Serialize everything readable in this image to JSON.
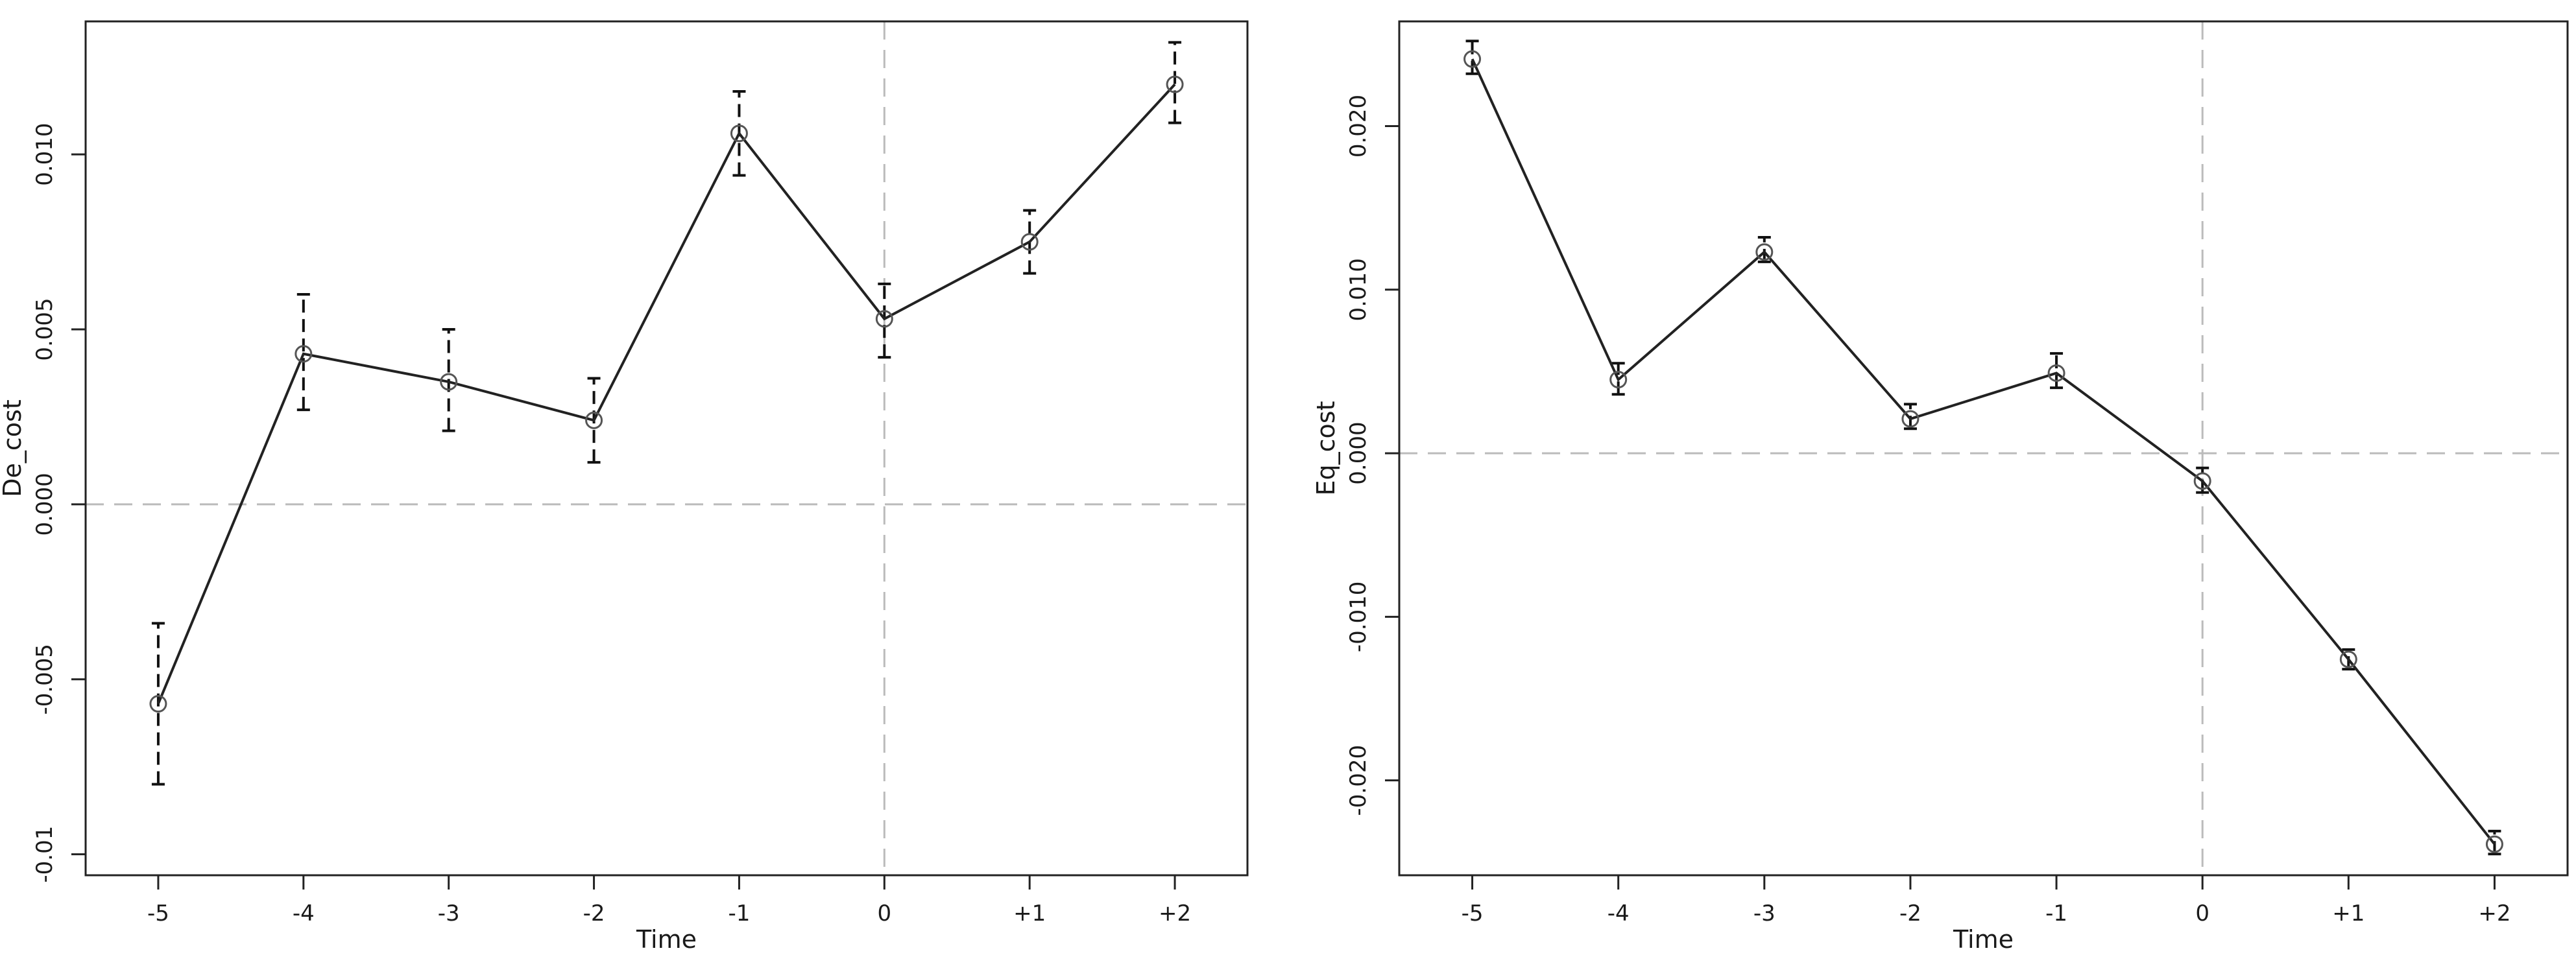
{
  "chart_data": [
    {
      "type": "line",
      "title": "",
      "xlabel": "Time",
      "ylabel": "De_cost",
      "categories": [
        "-5",
        "-4",
        "-3",
        "-2",
        "-1",
        "0",
        "+1",
        "+2"
      ],
      "x": [
        -5,
        -4,
        -3,
        -2,
        -1,
        0,
        1,
        2
      ],
      "values": [
        -0.0057,
        0.0043,
        0.0035,
        0.0024,
        0.0106,
        0.0053,
        0.0075,
        0.012
      ],
      "error_low": [
        -0.008,
        0.0027,
        0.0021,
        0.0012,
        0.0094,
        0.0042,
        0.0066,
        0.0109
      ],
      "error_high": [
        -0.0034,
        0.006,
        0.005,
        0.0036,
        0.0118,
        0.0063,
        0.0084,
        0.0132
      ],
      "xlim": [
        -5.5,
        2.5
      ],
      "ylim": [
        -0.0106,
        0.0138
      ],
      "yticks": [
        -0.01,
        -0.005,
        0.0,
        0.005,
        0.01
      ],
      "ytick_labels": [
        "-0.01",
        "-0.005",
        "0.000",
        "0.005",
        "0.010"
      ],
      "reference_lines": {
        "horizontal": 0,
        "vertical": 0
      },
      "grid": false,
      "legend": "none",
      "colors": {
        "line": "#222222",
        "marker": "#555555",
        "reference": "#bbbbbb"
      }
    },
    {
      "type": "line",
      "title": "",
      "xlabel": "Time",
      "ylabel": "Eq_cost",
      "categories": [
        "-5",
        "-4",
        "-3",
        "-2",
        "-1",
        "0",
        "+1",
        "+2"
      ],
      "x": [
        -5,
        -4,
        -3,
        -2,
        -1,
        0,
        1,
        2
      ],
      "values": [
        0.0241,
        0.0045,
        0.0123,
        0.0021,
        0.0049,
        -0.0017,
        -0.0126,
        -0.0239
      ],
      "error_low": [
        0.0232,
        0.0036,
        0.0117,
        0.0015,
        0.004,
        -0.0024,
        -0.0132,
        -0.0245
      ],
      "error_high": [
        0.0252,
        0.0055,
        0.0132,
        0.003,
        0.0061,
        -0.0009,
        -0.012,
        -0.0231
      ],
      "xlim": [
        -5.5,
        2.5
      ],
      "ylim": [
        -0.0258,
        0.0264
      ],
      "yticks": [
        -0.02,
        -0.01,
        0.0,
        0.01,
        0.02
      ],
      "ytick_labels": [
        "-0.020",
        "-0.010",
        "0.000",
        "0.010",
        "0.020"
      ],
      "reference_lines": {
        "horizontal": 0,
        "vertical": 0
      },
      "grid": false,
      "legend": "none",
      "colors": {
        "line": "#222222",
        "marker": "#555555",
        "reference": "#bbbbbb"
      }
    }
  ]
}
